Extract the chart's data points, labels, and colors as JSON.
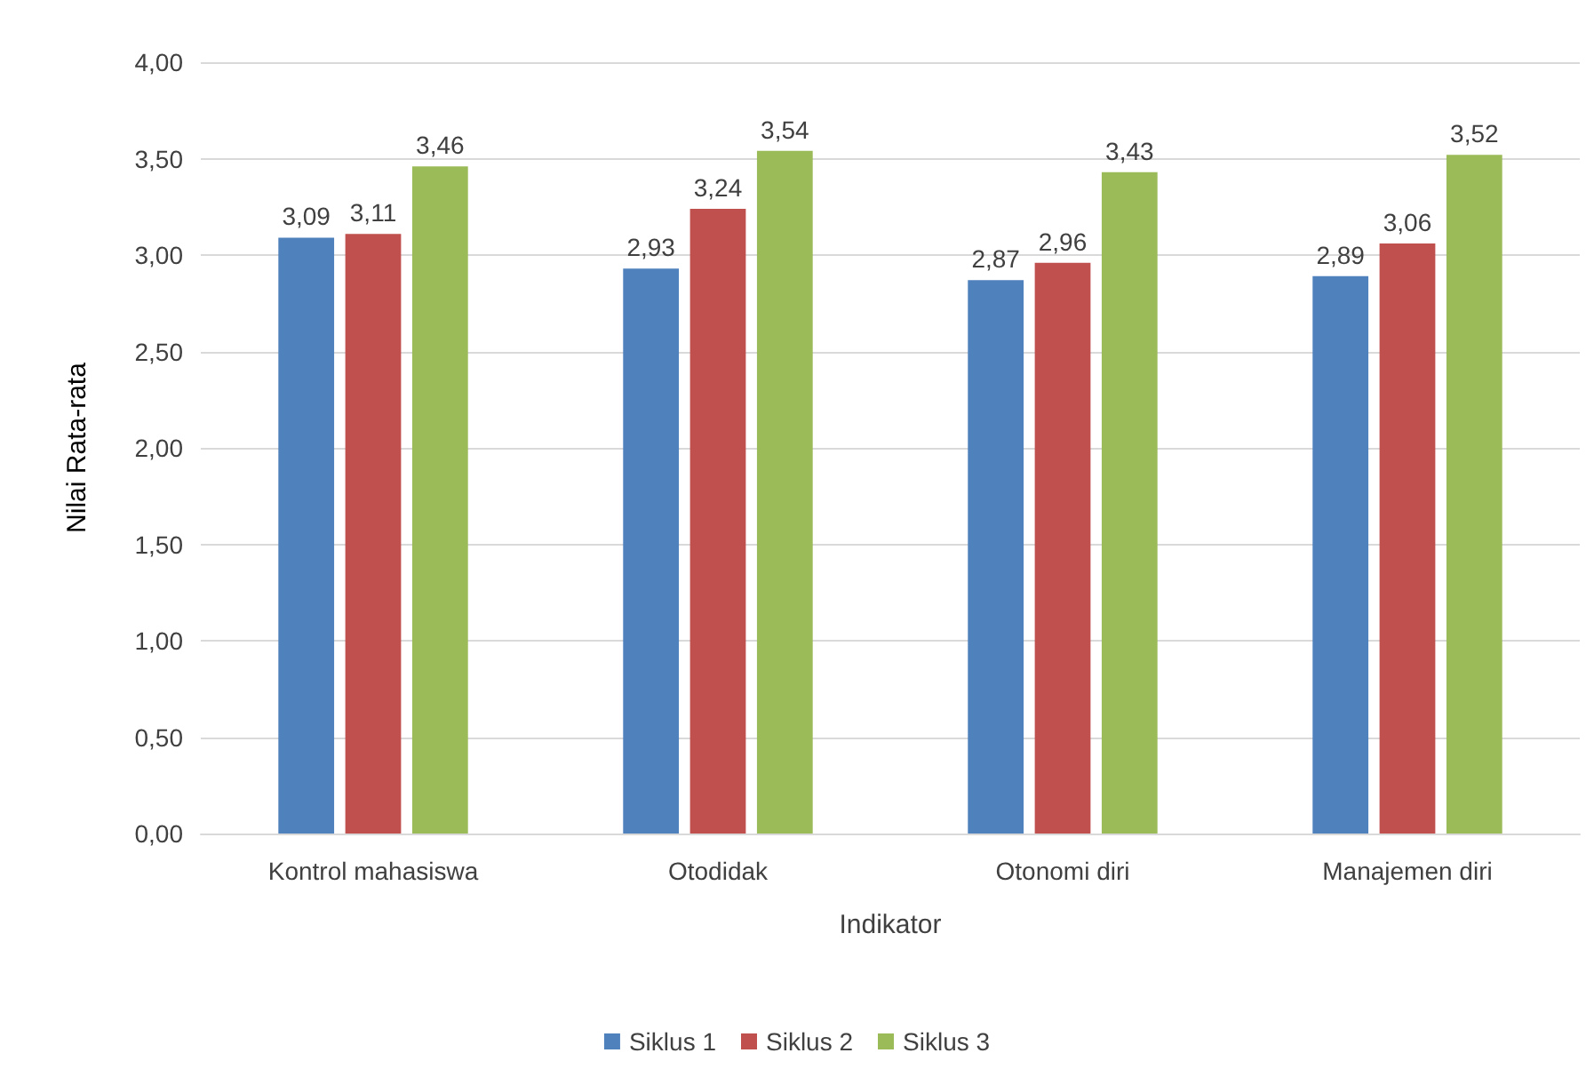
{
  "chart_data": {
    "type": "bar",
    "xlabel": "Indikator",
    "ylabel": "Nilai Rata-rata",
    "categories": [
      "Kontrol mahasiswa",
      "Otodidak",
      "Otonomi diri",
      "Manajemen diri"
    ],
    "series": [
      {
        "name": "Siklus 1",
        "color": "#4f81bd",
        "values": [
          3.09,
          2.93,
          2.87,
          2.89
        ],
        "value_labels": [
          "3,09",
          "2,93",
          "2,87",
          "2,89"
        ]
      },
      {
        "name": "Siklus 2",
        "color": "#c0504d",
        "values": [
          3.11,
          3.24,
          2.96,
          3.06
        ],
        "value_labels": [
          "3,11",
          "3,24",
          "2,96",
          "3,06"
        ]
      },
      {
        "name": "Siklus 3",
        "color": "#9bbb59",
        "values": [
          3.46,
          3.54,
          3.43,
          3.52
        ],
        "value_labels": [
          "3,46",
          "3,54",
          "3,43",
          "3,52"
        ]
      }
    ],
    "ylim": [
      0,
      4
    ],
    "yticks": [
      {
        "value": 0,
        "label": "0,00"
      },
      {
        "value": 0.5,
        "label": "0,50"
      },
      {
        "value": 1,
        "label": "1,00"
      },
      {
        "value": 1.5,
        "label": "1,50"
      },
      {
        "value": 2,
        "label": "2,00"
      },
      {
        "value": 2.5,
        "label": "2,50"
      },
      {
        "value": 3,
        "label": "3,00"
      },
      {
        "value": 3.5,
        "label": "3,50"
      },
      {
        "value": 4,
        "label": "4,00"
      }
    ],
    "grid": "y",
    "legend": "bottom"
  }
}
